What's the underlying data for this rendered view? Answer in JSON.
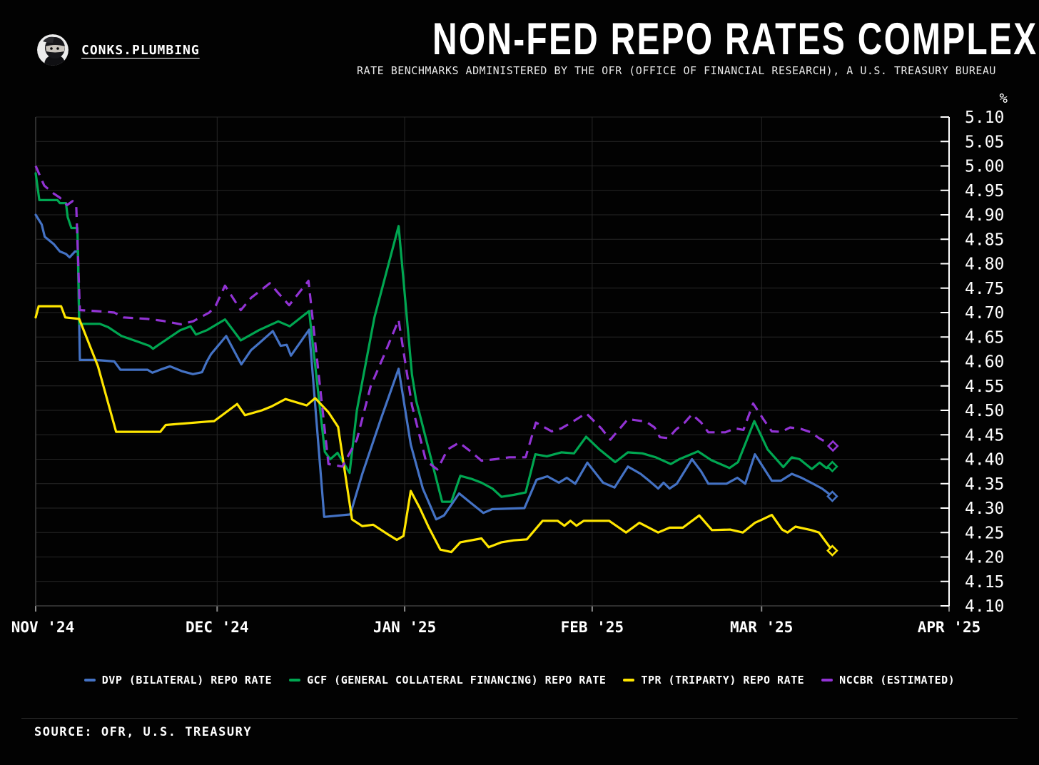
{
  "header": {
    "brand": "CONKS.PLUMBING",
    "title": "NON-FED REPO RATES COMPLEX",
    "subtitle": "RATE BENCHMARKS ADMINISTERED BY THE OFR (OFFICE OF FINANCIAL RESEARCH), A U.S. TREASURY BUREAU"
  },
  "footer": {
    "source": "SOURCE: OFR, U.S. TREASURY"
  },
  "colors": {
    "background": "#020202",
    "grid": "#272727",
    "frame": "#3c3c3c",
    "right_axis": "#ffffff",
    "bottom_tick": "#8a8a8a",
    "text": "#ffffff",
    "dvp_blue": "#4472c4",
    "gcf_green": "#00a651",
    "tpr_yellow": "#ffe600",
    "nccbr_purple": "#9233d4"
  },
  "chart_data": {
    "type": "line",
    "title": "NON-FED REPO RATES COMPLEX",
    "subtitle": "RATE BENCHMARKS ADMINISTERED BY THE OFR (OFFICE OF FINANCIAL RESEARCH), A U.S. TREASURY BUREAU",
    "unit_label": "%",
    "grid": true,
    "legend_position": "bottom",
    "x_axis_note": "x = days since Nov 1 2024; series end mid-March 2025 with open-diamond markers",
    "x_range": [
      0,
      151
    ],
    "x_ticks": [
      {
        "day": 0,
        "label": "NOV '24"
      },
      {
        "day": 30,
        "label": "DEC '24"
      },
      {
        "day": 61,
        "label": "JAN '25"
      },
      {
        "day": 92,
        "label": "FEB '25"
      },
      {
        "day": 120,
        "label": "MAR '25"
      },
      {
        "day": 151,
        "label": "APR '25"
      }
    ],
    "ylim": [
      4.1,
      5.1
    ],
    "y_tick_step": 0.05,
    "y_tick_labels": [
      "5.10",
      "5.05",
      "5.00",
      "4.95",
      "4.90",
      "4.85",
      "4.80",
      "4.75",
      "4.70",
      "4.65",
      "4.60",
      "4.55",
      "4.50",
      "4.45",
      "4.40",
      "4.35",
      "4.30",
      "4.25",
      "4.20",
      "4.15",
      "4.10"
    ],
    "end_marker": "diamond",
    "series": [
      {
        "id": "dvp",
        "name": "DVP (BILATERAL) REPO RATE",
        "color": "#4472c4",
        "dash": false,
        "points": [
          [
            0,
            4.9
          ],
          [
            1,
            4.88
          ],
          [
            1.5,
            4.855
          ],
          [
            3,
            4.84
          ],
          [
            4,
            4.825
          ],
          [
            5,
            4.82
          ],
          [
            5.6,
            4.813
          ],
          [
            6.5,
            4.825
          ],
          [
            7,
            4.825
          ],
          [
            7.3,
            4.603
          ],
          [
            10,
            4.603
          ],
          [
            13,
            4.6
          ],
          [
            14,
            4.583
          ],
          [
            18.5,
            4.583
          ],
          [
            19.3,
            4.577
          ],
          [
            21,
            4.585
          ],
          [
            22.2,
            4.59
          ],
          [
            24.2,
            4.58
          ],
          [
            26,
            4.574
          ],
          [
            27.5,
            4.578
          ],
          [
            28.3,
            4.6
          ],
          [
            29,
            4.615
          ],
          [
            31.5,
            4.652
          ],
          [
            34,
            4.594
          ],
          [
            35.6,
            4.623
          ],
          [
            37,
            4.638
          ],
          [
            39.2,
            4.662
          ],
          [
            40.5,
            4.632
          ],
          [
            41.5,
            4.634
          ],
          [
            42.2,
            4.612
          ],
          [
            45.2,
            4.665
          ],
          [
            47.7,
            4.282
          ],
          [
            52,
            4.287
          ],
          [
            54,
            4.37
          ],
          [
            57,
            4.48
          ],
          [
            60,
            4.585
          ],
          [
            62,
            4.43
          ],
          [
            64,
            4.34
          ],
          [
            66.2,
            4.277
          ],
          [
            67.5,
            4.285
          ],
          [
            70,
            4.33
          ],
          [
            72,
            4.31
          ],
          [
            74,
            4.29
          ],
          [
            75.5,
            4.298
          ],
          [
            80.8,
            4.3
          ],
          [
            82.8,
            4.358
          ],
          [
            84.6,
            4.365
          ],
          [
            86.5,
            4.352
          ],
          [
            87.8,
            4.362
          ],
          [
            89.2,
            4.35
          ],
          [
            91.2,
            4.393
          ],
          [
            93.8,
            4.352
          ],
          [
            95.7,
            4.342
          ],
          [
            97.9,
            4.385
          ],
          [
            100,
            4.37
          ],
          [
            101.5,
            4.355
          ],
          [
            102.9,
            4.34
          ],
          [
            103.8,
            4.352
          ],
          [
            104.8,
            4.34
          ],
          [
            106,
            4.35
          ],
          [
            108.5,
            4.4
          ],
          [
            110,
            4.375
          ],
          [
            111.2,
            4.35
          ],
          [
            114.2,
            4.35
          ],
          [
            116,
            4.362
          ],
          [
            117.3,
            4.35
          ],
          [
            118.9,
            4.41
          ],
          [
            121.7,
            4.356
          ],
          [
            123.2,
            4.356
          ],
          [
            125,
            4.37
          ],
          [
            126.6,
            4.362
          ],
          [
            128.5,
            4.35
          ],
          [
            130,
            4.34
          ],
          [
            131.7,
            4.324
          ]
        ]
      },
      {
        "id": "gcf",
        "name": "GCF (GENERAL COLLATERAL FINANCING) REPO RATE",
        "color": "#00a651",
        "dash": false,
        "points": [
          [
            0,
            4.985
          ],
          [
            0.6,
            4.93
          ],
          [
            3.6,
            4.93
          ],
          [
            4,
            4.924
          ],
          [
            5,
            4.924
          ],
          [
            5.3,
            4.895
          ],
          [
            5.9,
            4.873
          ],
          [
            6.9,
            4.873
          ],
          [
            7.2,
            4.677
          ],
          [
            10.6,
            4.677
          ],
          [
            12,
            4.67
          ],
          [
            14.2,
            4.652
          ],
          [
            17,
            4.64
          ],
          [
            18.8,
            4.632
          ],
          [
            19.4,
            4.626
          ],
          [
            20.2,
            4.633
          ],
          [
            23.9,
            4.664
          ],
          [
            25.6,
            4.672
          ],
          [
            26.5,
            4.655
          ],
          [
            28.3,
            4.664
          ],
          [
            31.3,
            4.686
          ],
          [
            33.9,
            4.643
          ],
          [
            36.9,
            4.664
          ],
          [
            40.1,
            4.682
          ],
          [
            42,
            4.672
          ],
          [
            45.2,
            4.703
          ],
          [
            47.8,
            4.415
          ],
          [
            48.7,
            4.4
          ],
          [
            49.9,
            4.413
          ],
          [
            51.9,
            4.372
          ],
          [
            53.1,
            4.5
          ],
          [
            56,
            4.69
          ],
          [
            60,
            4.877
          ],
          [
            62.2,
            4.573
          ],
          [
            62.9,
            4.52
          ],
          [
            67.2,
            4.313
          ],
          [
            68.7,
            4.313
          ],
          [
            70.2,
            4.366
          ],
          [
            72,
            4.36
          ],
          [
            73.7,
            4.352
          ],
          [
            75.5,
            4.34
          ],
          [
            77,
            4.323
          ],
          [
            79,
            4.327
          ],
          [
            81,
            4.332
          ],
          [
            82.6,
            4.41
          ],
          [
            84.5,
            4.406
          ],
          [
            86.9,
            4.414
          ],
          [
            89,
            4.412
          ],
          [
            91,
            4.446
          ],
          [
            93.2,
            4.42
          ],
          [
            95.8,
            4.394
          ],
          [
            97.9,
            4.414
          ],
          [
            100.3,
            4.412
          ],
          [
            102.5,
            4.404
          ],
          [
            105,
            4.39
          ],
          [
            106.4,
            4.4
          ],
          [
            109.5,
            4.416
          ],
          [
            111.7,
            4.398
          ],
          [
            114.7,
            4.382
          ],
          [
            116.1,
            4.394
          ],
          [
            118.8,
            4.478
          ],
          [
            121,
            4.42
          ],
          [
            123.6,
            4.384
          ],
          [
            125,
            4.404
          ],
          [
            126.3,
            4.4
          ],
          [
            128.3,
            4.38
          ],
          [
            129.6,
            4.393
          ],
          [
            130.7,
            4.382
          ],
          [
            131.7,
            4.385
          ]
        ]
      },
      {
        "id": "tpr",
        "name": "TPR (TRIPARTY) REPO RATE",
        "color": "#ffe600",
        "dash": false,
        "points": [
          [
            0,
            4.69
          ],
          [
            0.5,
            4.713
          ],
          [
            4.2,
            4.713
          ],
          [
            4.9,
            4.69
          ],
          [
            7.2,
            4.687
          ],
          [
            10.3,
            4.59
          ],
          [
            13.3,
            4.456
          ],
          [
            20.6,
            4.456
          ],
          [
            21.5,
            4.47
          ],
          [
            28.3,
            4.477
          ],
          [
            29.5,
            4.478
          ],
          [
            33.3,
            4.513
          ],
          [
            34.6,
            4.49
          ],
          [
            37.4,
            4.5
          ],
          [
            39,
            4.508
          ],
          [
            41.3,
            4.523
          ],
          [
            44.8,
            4.51
          ],
          [
            46.2,
            4.525
          ],
          [
            48.4,
            4.496
          ],
          [
            50,
            4.466
          ],
          [
            52.3,
            4.277
          ],
          [
            54,
            4.263
          ],
          [
            55.8,
            4.266
          ],
          [
            58,
            4.248
          ],
          [
            59.7,
            4.235
          ],
          [
            60.8,
            4.243
          ],
          [
            62,
            4.335
          ],
          [
            63.5,
            4.3
          ],
          [
            65,
            4.26
          ],
          [
            66.9,
            4.215
          ],
          [
            68.7,
            4.21
          ],
          [
            70.2,
            4.23
          ],
          [
            73.7,
            4.238
          ],
          [
            74.9,
            4.22
          ],
          [
            77,
            4.23
          ],
          [
            79,
            4.234
          ],
          [
            81.2,
            4.236
          ],
          [
            83.8,
            4.274
          ],
          [
            86.3,
            4.274
          ],
          [
            87.4,
            4.264
          ],
          [
            88.4,
            4.274
          ],
          [
            89.4,
            4.264
          ],
          [
            90.6,
            4.274
          ],
          [
            94.8,
            4.274
          ],
          [
            97.6,
            4.25
          ],
          [
            99.8,
            4.27
          ],
          [
            102.9,
            4.25
          ],
          [
            104.8,
            4.26
          ],
          [
            107,
            4.26
          ],
          [
            109.7,
            4.285
          ],
          [
            111.8,
            4.255
          ],
          [
            114.8,
            4.256
          ],
          [
            116.9,
            4.25
          ],
          [
            118.9,
            4.27
          ],
          [
            120,
            4.276
          ],
          [
            121.7,
            4.286
          ],
          [
            123.4,
            4.256
          ],
          [
            124.3,
            4.25
          ],
          [
            125.6,
            4.262
          ],
          [
            128.2,
            4.255
          ],
          [
            129.5,
            4.25
          ],
          [
            131.7,
            4.213
          ]
        ]
      },
      {
        "id": "nccbr",
        "name": "NCCBR (ESTIMATED)",
        "color": "#9233d4",
        "dash": true,
        "points": [
          [
            0,
            5.0
          ],
          [
            1.4,
            4.96
          ],
          [
            2.8,
            4.945
          ],
          [
            4,
            4.935
          ],
          [
            5.2,
            4.92
          ],
          [
            6.1,
            4.928
          ],
          [
            6.7,
            4.92
          ],
          [
            7.3,
            4.705
          ],
          [
            10,
            4.703
          ],
          [
            13,
            4.7
          ],
          [
            14.5,
            4.69
          ],
          [
            18.5,
            4.687
          ],
          [
            21,
            4.683
          ],
          [
            24,
            4.676
          ],
          [
            26,
            4.682
          ],
          [
            28.7,
            4.7
          ],
          [
            29.8,
            4.715
          ],
          [
            31.3,
            4.755
          ],
          [
            33.9,
            4.705
          ],
          [
            35.6,
            4.73
          ],
          [
            38.7,
            4.76
          ],
          [
            40.1,
            4.74
          ],
          [
            41.9,
            4.715
          ],
          [
            45.1,
            4.765
          ],
          [
            48.4,
            4.39
          ],
          [
            50.7,
            4.385
          ],
          [
            53.1,
            4.44
          ],
          [
            55.4,
            4.55
          ],
          [
            57.5,
            4.61
          ],
          [
            60,
            4.685
          ],
          [
            62.2,
            4.51
          ],
          [
            64.5,
            4.397
          ],
          [
            66.4,
            4.379
          ],
          [
            68.1,
            4.42
          ],
          [
            70,
            4.434
          ],
          [
            72,
            4.415
          ],
          [
            73.7,
            4.397
          ],
          [
            76,
            4.4
          ],
          [
            78.3,
            4.404
          ],
          [
            81,
            4.404
          ],
          [
            82.7,
            4.475
          ],
          [
            85.3,
            4.457
          ],
          [
            86.9,
            4.463
          ],
          [
            88.8,
            4.477
          ],
          [
            91,
            4.494
          ],
          [
            93.5,
            4.463
          ],
          [
            95,
            4.44
          ],
          [
            97.9,
            4.482
          ],
          [
            100.9,
            4.477
          ],
          [
            102.3,
            4.465
          ],
          [
            103.2,
            4.445
          ],
          [
            104.6,
            4.443
          ],
          [
            105.8,
            4.46
          ],
          [
            107.3,
            4.475
          ],
          [
            108.5,
            4.492
          ],
          [
            110,
            4.475
          ],
          [
            111.2,
            4.455
          ],
          [
            114,
            4.455
          ],
          [
            115.6,
            4.463
          ],
          [
            117,
            4.46
          ],
          [
            118.6,
            4.514
          ],
          [
            120.4,
            4.48
          ],
          [
            121.7,
            4.457
          ],
          [
            123.3,
            4.456
          ],
          [
            124.7,
            4.465
          ],
          [
            126.5,
            4.462
          ],
          [
            128.2,
            4.455
          ],
          [
            129.5,
            4.443
          ],
          [
            131.8,
            4.427
          ]
        ]
      }
    ]
  }
}
